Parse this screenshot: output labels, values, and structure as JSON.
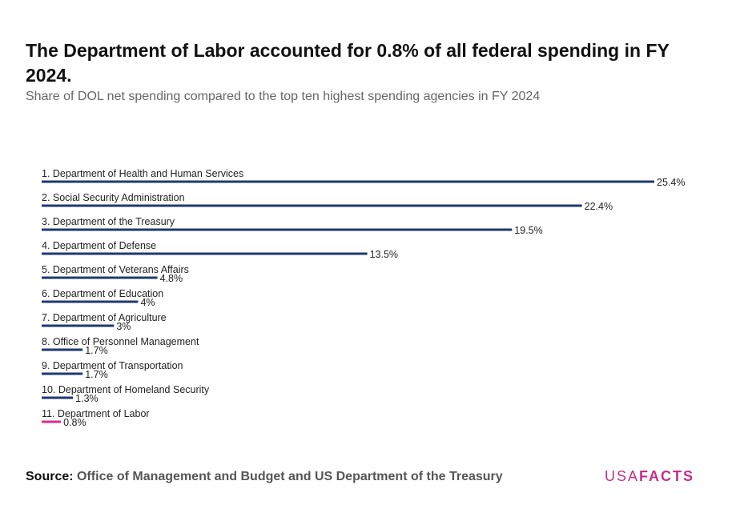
{
  "title": "The Department of Labor accounted for 0.8% of all federal spending in FY 2024.",
  "subtitle": "Share of DOL net spending compared to the top ten highest spending agencies in FY 2024",
  "source": {
    "label": "Source:",
    "text": "Office of Management and Budget and US Department of the Treasury"
  },
  "logo": {
    "part1": "USA",
    "part2": "FACTS"
  },
  "colors": {
    "bar": "#1f3a6e",
    "highlight": "#d62e8e",
    "text": "#222222"
  },
  "chart_data": {
    "type": "bar",
    "orientation": "horizontal",
    "title": "The Department of Labor accounted for 0.8% of all federal spending in FY 2024.",
    "subtitle": "Share of DOL net spending compared to the top ten highest spending agencies in FY 2024",
    "xlabel": "",
    "ylabel": "",
    "categories": [
      "1. Department of Health and Human Services",
      "2. Social Security Administration",
      "3. Department of the Treasury",
      "4. Department of Defense",
      "5. Department of Veterans Affairs",
      "6. Department of Education",
      "7. Department of Agriculture",
      "8. Office of Personnel Management",
      "9. Department of Transportation",
      "10. Department of Homeland Security",
      "11. Department of Labor"
    ],
    "values": [
      25.4,
      22.4,
      19.5,
      13.5,
      4.8,
      4,
      3,
      1.7,
      1.7,
      1.3,
      0.8
    ],
    "value_labels": [
      "25.4%",
      "22.4%",
      "19.5%",
      "13.5%",
      "4.8%",
      "4%",
      "3%",
      "1.7%",
      "1.7%",
      "1.3%",
      "0.8%"
    ],
    "highlight_index": 10,
    "xlim": [
      0,
      25.4
    ],
    "grid": false,
    "legend": "none"
  }
}
